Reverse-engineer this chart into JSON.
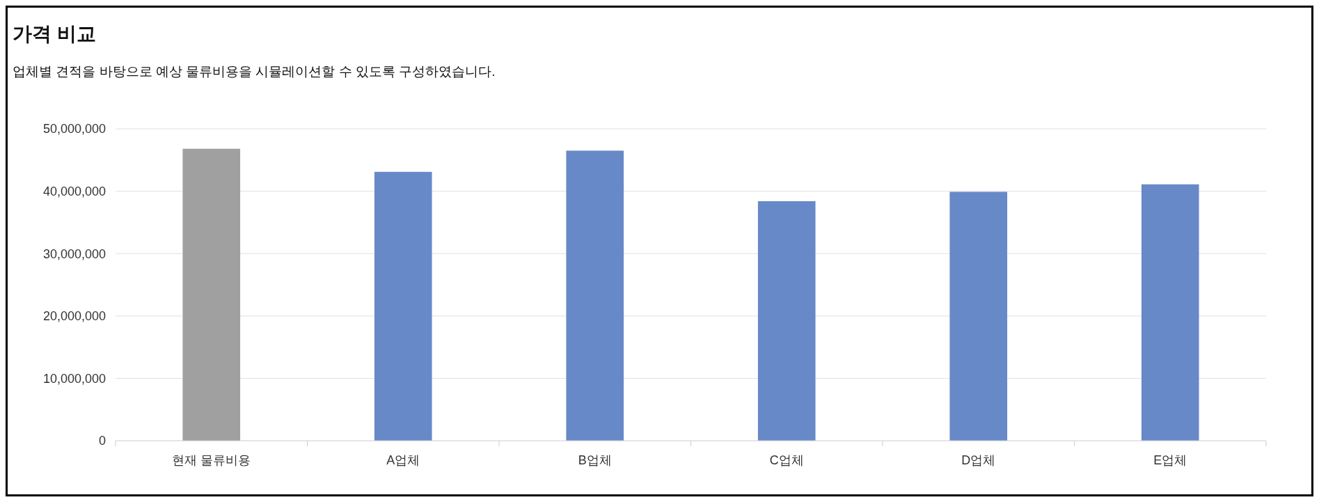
{
  "chart_data": {
    "type": "bar",
    "title": "가격 비교",
    "subtitle": "업체별 견적을 바탕으로 예상 물류비용을 시뮬레이션할 수 있도록 구성하였습니다.",
    "categories": [
      "현재 물류비용",
      "A업체",
      "B업체",
      "C업체",
      "D업체",
      "E업체"
    ],
    "values": [
      46800000,
      43100000,
      46500000,
      38400000,
      39900000,
      41100000
    ],
    "colors": [
      "#a0a0a0",
      "#6889c8",
      "#6889c8",
      "#6889c8",
      "#6889c8",
      "#6889c8"
    ],
    "ylim": [
      0,
      50000000
    ],
    "yticks": [
      {
        "value": 0,
        "label": "0"
      },
      {
        "value": 10000000,
        "label": "10,000,000"
      },
      {
        "value": 20000000,
        "label": "20,000,000"
      },
      {
        "value": 30000000,
        "label": "30,000,000"
      },
      {
        "value": 40000000,
        "label": "40,000,000"
      },
      {
        "value": 50000000,
        "label": "50,000,000"
      }
    ],
    "grid": "y"
  }
}
